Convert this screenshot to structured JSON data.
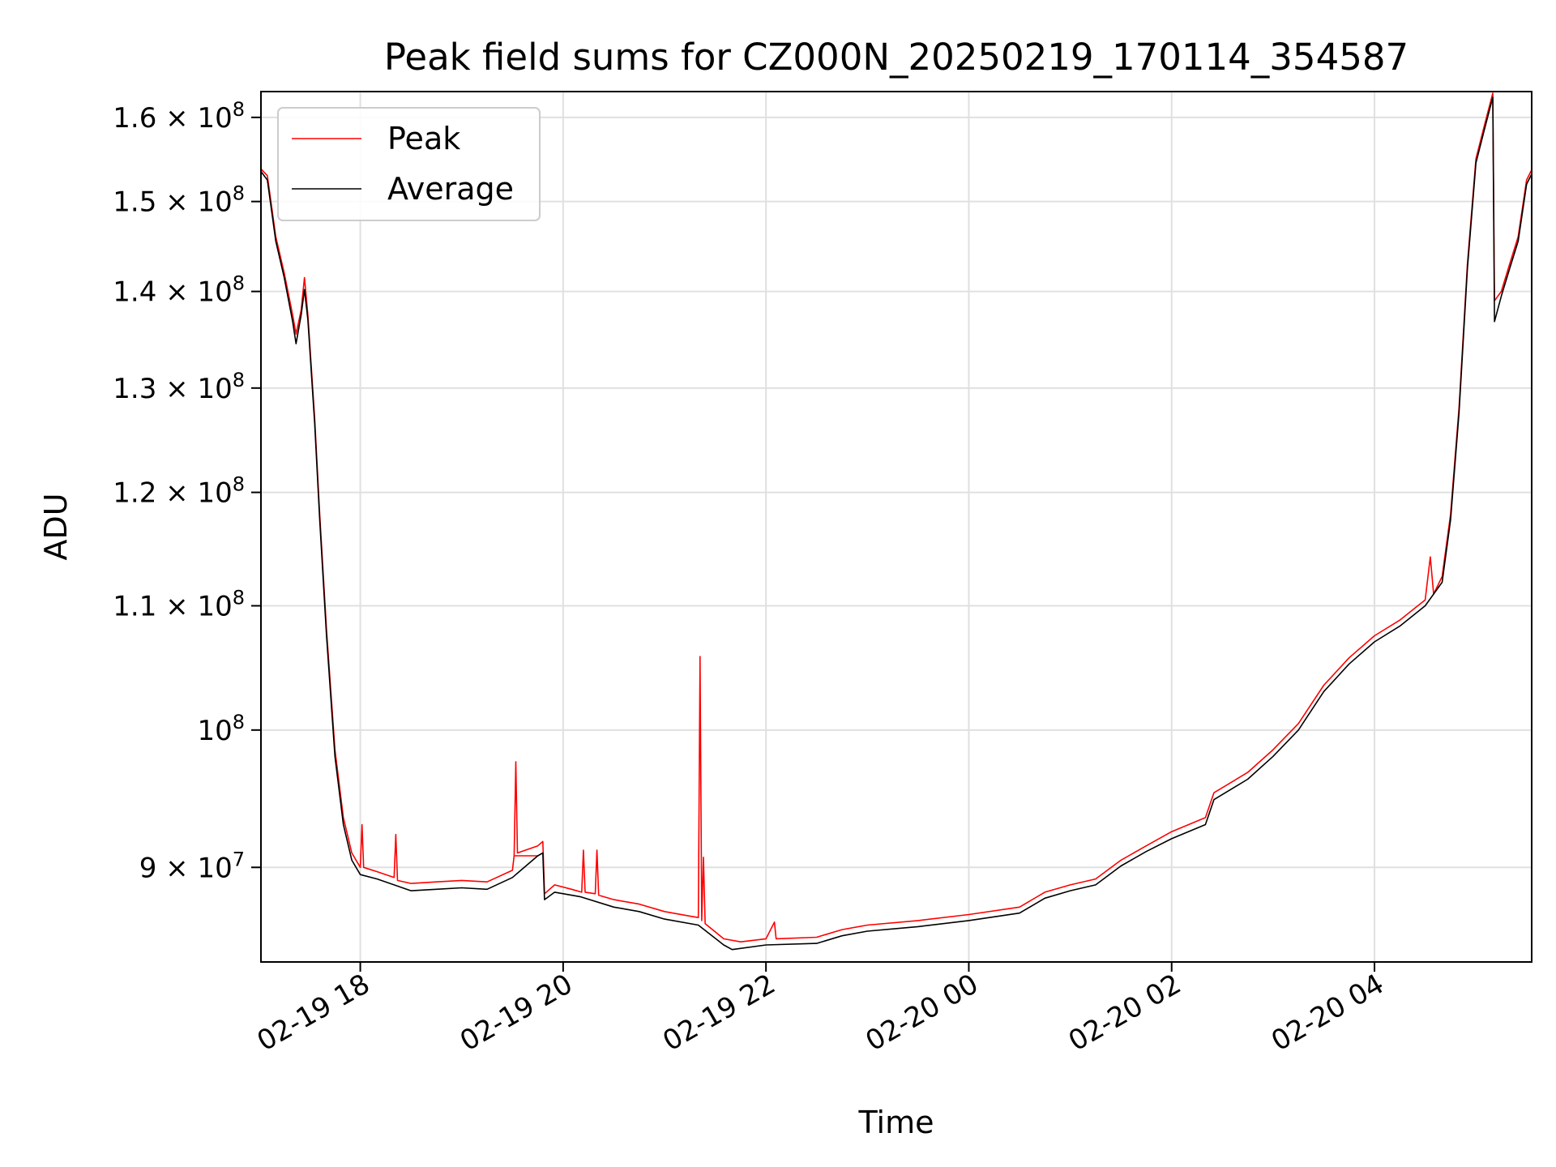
{
  "chart_data": {
    "type": "line",
    "title": "Peak field sums for CZ000N_20250219_170114_354587",
    "xlabel": "Time",
    "ylabel": "ADU",
    "yscale": "log",
    "x_unit": "time",
    "xlim": [
      "2025-02-19T17:01:14",
      "2025-02-20T05:33:00"
    ],
    "ylim": [
      83700000,
      163200000
    ],
    "grid": true,
    "legend_position": "upper-left",
    "x_ticks": [
      {
        "value": "2025-02-19T18:00",
        "label": "02-19 18"
      },
      {
        "value": "2025-02-19T20:00",
        "label": "02-19 20"
      },
      {
        "value": "2025-02-19T22:00",
        "label": "02-19 22"
      },
      {
        "value": "2025-02-20T00:00",
        "label": "02-20 00"
      },
      {
        "value": "2025-02-20T02:00",
        "label": "02-20 02"
      },
      {
        "value": "2025-02-20T04:00",
        "label": "02-20 04"
      }
    ],
    "y_ticks": [
      {
        "value": 90000000,
        "mant": "9 × 10",
        "exp": "7"
      },
      {
        "value": 100000000,
        "mant": "10",
        "exp": "8"
      },
      {
        "value": 110000000,
        "mant": "1.1 × 10",
        "exp": "8"
      },
      {
        "value": 120000000,
        "mant": "1.2 × 10",
        "exp": "8"
      },
      {
        "value": 130000000,
        "mant": "1.3 × 10",
        "exp": "8"
      },
      {
        "value": 140000000,
        "mant": "1.4 × 10",
        "exp": "8"
      },
      {
        "value": 150000000,
        "mant": "1.5 × 10",
        "exp": "8"
      },
      {
        "value": 160000000,
        "mant": "1.6 × 10",
        "exp": "8"
      }
    ],
    "series": [
      {
        "name": "Peak",
        "color": "#ff0000",
        "points": [
          [
            "2025-02-19T17:01:14",
            153800000
          ],
          [
            "2025-02-19T17:05",
            153000000
          ],
          [
            "2025-02-19T17:10",
            146000000
          ],
          [
            "2025-02-19T17:15",
            142000000
          ],
          [
            "2025-02-19T17:20",
            137500000
          ],
          [
            "2025-02-19T17:22",
            135500000
          ],
          [
            "2025-02-19T17:25",
            138000000
          ],
          [
            "2025-02-19T17:27",
            141500000
          ],
          [
            "2025-02-19T17:29",
            137500000
          ],
          [
            "2025-02-19T17:33",
            127000000
          ],
          [
            "2025-02-19T17:36",
            118000000
          ],
          [
            "2025-02-19T17:40",
            108000000
          ],
          [
            "2025-02-19T17:45",
            98500000
          ],
          [
            "2025-02-19T17:50",
            93500000
          ],
          [
            "2025-02-19T17:55",
            91000000
          ],
          [
            "2025-02-19T18:00",
            90000000
          ],
          [
            "2025-02-19T18:01",
            93000000
          ],
          [
            "2025-02-19T18:02",
            90000000
          ],
          [
            "2025-02-19T18:10",
            89700000
          ],
          [
            "2025-02-19T18:20",
            89300000
          ],
          [
            "2025-02-19T18:21",
            92300000
          ],
          [
            "2025-02-19T18:22",
            89100000
          ],
          [
            "2025-02-19T18:30",
            88900000
          ],
          [
            "2025-02-19T18:45",
            89000000
          ],
          [
            "2025-02-19T19:00",
            89100000
          ],
          [
            "2025-02-19T19:15",
            89000000
          ],
          [
            "2025-02-19T19:30",
            89800000
          ],
          [
            "2025-02-19T19:31",
            90800000
          ],
          [
            "2025-02-19T19:45",
            90800000
          ],
          [
            "2025-02-19T19:31",
            90800000
          ],
          [
            "2025-02-19T19:32",
            97600000
          ],
          [
            "2025-02-19T19:33",
            91000000
          ],
          [
            "2025-02-19T19:45",
            91500000
          ],
          [
            "2025-02-19T19:48",
            91800000
          ],
          [
            "2025-02-19T19:49",
            88200000
          ],
          [
            "2025-02-19T19:55",
            88800000
          ],
          [
            "2025-02-19T20:05",
            88500000
          ],
          [
            "2025-02-19T20:11",
            88300000
          ],
          [
            "2025-02-19T20:12",
            91200000
          ],
          [
            "2025-02-19T20:13",
            88300000
          ],
          [
            "2025-02-19T20:19",
            88200000
          ],
          [
            "2025-02-19T20:20",
            91200000
          ],
          [
            "2025-02-19T20:21",
            88100000
          ],
          [
            "2025-02-19T20:30",
            87800000
          ],
          [
            "2025-02-19T20:45",
            87500000
          ],
          [
            "2025-02-19T21:00",
            87000000
          ],
          [
            "2025-02-19T21:15",
            86700000
          ],
          [
            "2025-02-19T21:20",
            86600000
          ],
          [
            "2025-02-19T21:21",
            105800000
          ],
          [
            "2025-02-19T21:22",
            86400000
          ],
          [
            "2025-02-19T21:23",
            90700000
          ],
          [
            "2025-02-19T21:24",
            86200000
          ],
          [
            "2025-02-19T21:35",
            85200000
          ],
          [
            "2025-02-19T21:45",
            85000000
          ],
          [
            "2025-02-19T22:00",
            85200000
          ],
          [
            "2025-02-19T22:05",
            86300000
          ],
          [
            "2025-02-19T22:06",
            85200000
          ],
          [
            "2025-02-19T22:30",
            85300000
          ],
          [
            "2025-02-19T22:45",
            85800000
          ],
          [
            "2025-02-19T23:00",
            86100000
          ],
          [
            "2025-02-19T23:30",
            86400000
          ],
          [
            "2025-02-20T00:00",
            86800000
          ],
          [
            "2025-02-20T00:30",
            87300000
          ],
          [
            "2025-02-20T00:45",
            88300000
          ],
          [
            "2025-02-20T01:00",
            88800000
          ],
          [
            "2025-02-20T01:15",
            89200000
          ],
          [
            "2025-02-20T01:30",
            90500000
          ],
          [
            "2025-02-20T01:45",
            91500000
          ],
          [
            "2025-02-20T02:00",
            92500000
          ],
          [
            "2025-02-20T02:20",
            93500000
          ],
          [
            "2025-02-20T02:25",
            95300000
          ],
          [
            "2025-02-20T02:45",
            96800000
          ],
          [
            "2025-02-20T03:00",
            98500000
          ],
          [
            "2025-02-20T03:15",
            100500000
          ],
          [
            "2025-02-20T03:30",
            103500000
          ],
          [
            "2025-02-20T03:45",
            105700000
          ],
          [
            "2025-02-20T04:00",
            107500000
          ],
          [
            "2025-02-20T04:15",
            108800000
          ],
          [
            "2025-02-20T04:30",
            110500000
          ],
          [
            "2025-02-20T04:33",
            114200000
          ],
          [
            "2025-02-20T04:35",
            111000000
          ],
          [
            "2025-02-20T04:40",
            112500000
          ],
          [
            "2025-02-20T04:45",
            118000000
          ],
          [
            "2025-02-20T04:50",
            128000000
          ],
          [
            "2025-02-20T04:55",
            143000000
          ],
          [
            "2025-02-20T05:00",
            155000000
          ],
          [
            "2025-02-20T05:05",
            159000000
          ],
          [
            "2025-02-20T05:10",
            163000000
          ],
          [
            "2025-02-20T05:11",
            139000000
          ],
          [
            "2025-02-20T05:15",
            140000000
          ],
          [
            "2025-02-20T05:20",
            143000000
          ],
          [
            "2025-02-20T05:25",
            146000000
          ],
          [
            "2025-02-20T05:30",
            152500000
          ],
          [
            "2025-02-20T05:33",
            153700000
          ]
        ]
      },
      {
        "name": "Average",
        "color": "#000000",
        "points": [
          [
            "2025-02-19T17:01:14",
            153500000
          ],
          [
            "2025-02-19T17:05",
            152500000
          ],
          [
            "2025-02-19T17:10",
            145500000
          ],
          [
            "2025-02-19T17:15",
            141500000
          ],
          [
            "2025-02-19T17:20",
            136800000
          ],
          [
            "2025-02-19T17:22",
            134500000
          ],
          [
            "2025-02-19T17:25",
            137500000
          ],
          [
            "2025-02-19T17:27",
            140200000
          ],
          [
            "2025-02-19T17:29",
            137000000
          ],
          [
            "2025-02-19T17:33",
            126500000
          ],
          [
            "2025-02-19T17:36",
            117500000
          ],
          [
            "2025-02-19T17:40",
            107500000
          ],
          [
            "2025-02-19T17:45",
            98000000
          ],
          [
            "2025-02-19T17:50",
            93000000
          ],
          [
            "2025-02-19T17:55",
            90500000
          ],
          [
            "2025-02-19T18:00",
            89500000
          ],
          [
            "2025-02-19T18:10",
            89200000
          ],
          [
            "2025-02-19T18:20",
            88800000
          ],
          [
            "2025-02-19T18:30",
            88400000
          ],
          [
            "2025-02-19T18:45",
            88500000
          ],
          [
            "2025-02-19T19:00",
            88600000
          ],
          [
            "2025-02-19T19:15",
            88500000
          ],
          [
            "2025-02-19T19:30",
            89300000
          ],
          [
            "2025-02-19T19:45",
            90800000
          ],
          [
            "2025-02-19T19:48",
            91000000
          ],
          [
            "2025-02-19T19:49",
            87800000
          ],
          [
            "2025-02-19T19:55",
            88300000
          ],
          [
            "2025-02-19T20:10",
            88000000
          ],
          [
            "2025-02-19T20:30",
            87300000
          ],
          [
            "2025-02-19T20:45",
            87000000
          ],
          [
            "2025-02-19T21:00",
            86500000
          ],
          [
            "2025-02-19T21:20",
            86100000
          ],
          [
            "2025-02-19T21:35",
            84800000
          ],
          [
            "2025-02-19T21:40",
            84500000
          ],
          [
            "2025-02-19T22:00",
            84800000
          ],
          [
            "2025-02-19T22:30",
            84900000
          ],
          [
            "2025-02-19T22:45",
            85400000
          ],
          [
            "2025-02-19T23:00",
            85700000
          ],
          [
            "2025-02-19T23:30",
            86000000
          ],
          [
            "2025-02-20T00:00",
            86400000
          ],
          [
            "2025-02-20T00:30",
            86900000
          ],
          [
            "2025-02-20T00:45",
            87900000
          ],
          [
            "2025-02-20T01:00",
            88400000
          ],
          [
            "2025-02-20T01:15",
            88800000
          ],
          [
            "2025-02-20T01:30",
            90100000
          ],
          [
            "2025-02-20T01:45",
            91100000
          ],
          [
            "2025-02-20T02:00",
            92000000
          ],
          [
            "2025-02-20T02:20",
            93000000
          ],
          [
            "2025-02-20T02:25",
            94800000
          ],
          [
            "2025-02-20T02:45",
            96300000
          ],
          [
            "2025-02-20T03:00",
            98000000
          ],
          [
            "2025-02-20T03:15",
            100000000
          ],
          [
            "2025-02-20T03:30",
            103000000
          ],
          [
            "2025-02-20T03:45",
            105200000
          ],
          [
            "2025-02-20T04:00",
            107000000
          ],
          [
            "2025-02-20T04:15",
            108300000
          ],
          [
            "2025-02-20T04:30",
            110000000
          ],
          [
            "2025-02-20T04:40",
            112000000
          ],
          [
            "2025-02-20T04:45",
            117500000
          ],
          [
            "2025-02-20T04:50",
            127500000
          ],
          [
            "2025-02-20T04:55",
            142500000
          ],
          [
            "2025-02-20T05:00",
            154500000
          ],
          [
            "2025-02-20T05:05",
            158500000
          ],
          [
            "2025-02-20T05:10",
            162500000
          ],
          [
            "2025-02-20T05:11",
            136800000
          ],
          [
            "2025-02-20T05:15",
            139500000
          ],
          [
            "2025-02-20T05:20",
            142500000
          ],
          [
            "2025-02-20T05:25",
            145500000
          ],
          [
            "2025-02-20T05:30",
            152000000
          ],
          [
            "2025-02-20T05:33",
            153200000
          ]
        ]
      }
    ]
  }
}
